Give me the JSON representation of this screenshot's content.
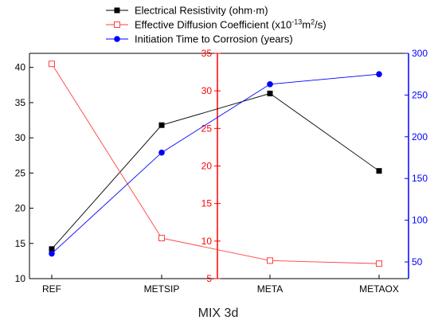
{
  "chart_data": {
    "type": "line",
    "xlabel": "MIX 3d",
    "categories": [
      "REF",
      "METSIP",
      "META",
      "METAOX"
    ],
    "axes": {
      "left": {
        "ylim": [
          10,
          42
        ],
        "ticks": [
          10,
          15,
          20,
          25,
          30,
          35,
          40
        ],
        "color": "#000000"
      },
      "middle": {
        "ylim": [
          5,
          35
        ],
        "ticks": [
          5,
          10,
          15,
          20,
          25,
          30,
          35
        ],
        "color": "#ff0000"
      },
      "right": {
        "ylim": [
          30,
          300
        ],
        "ticks": [
          50,
          100,
          150,
          200,
          250,
          300
        ],
        "color": "#0000ff"
      }
    },
    "series": [
      {
        "name": "Electrical Resistivity (ohm·m)",
        "axis": "left",
        "color": "#000000",
        "marker": "square-filled",
        "values": [
          14.2,
          31.8,
          36.3,
          25.3
        ]
      },
      {
        "name": "Effective Diffusion Coefficient (x10",
        "name_sup1": "-13",
        "name_mid": "m",
        "name_sup2": "2",
        "name_end": "/s)",
        "axis": "middle",
        "color": "#ff4040",
        "marker": "square-open",
        "values": [
          33.6,
          10.4,
          7.4,
          7.0
        ]
      },
      {
        "name": "Initiation Time to Corrosion (years)",
        "axis": "right",
        "color": "#0000ff",
        "marker": "circle-filled",
        "values": [
          60,
          181,
          263,
          275
        ]
      }
    ],
    "legend_position": "top"
  }
}
